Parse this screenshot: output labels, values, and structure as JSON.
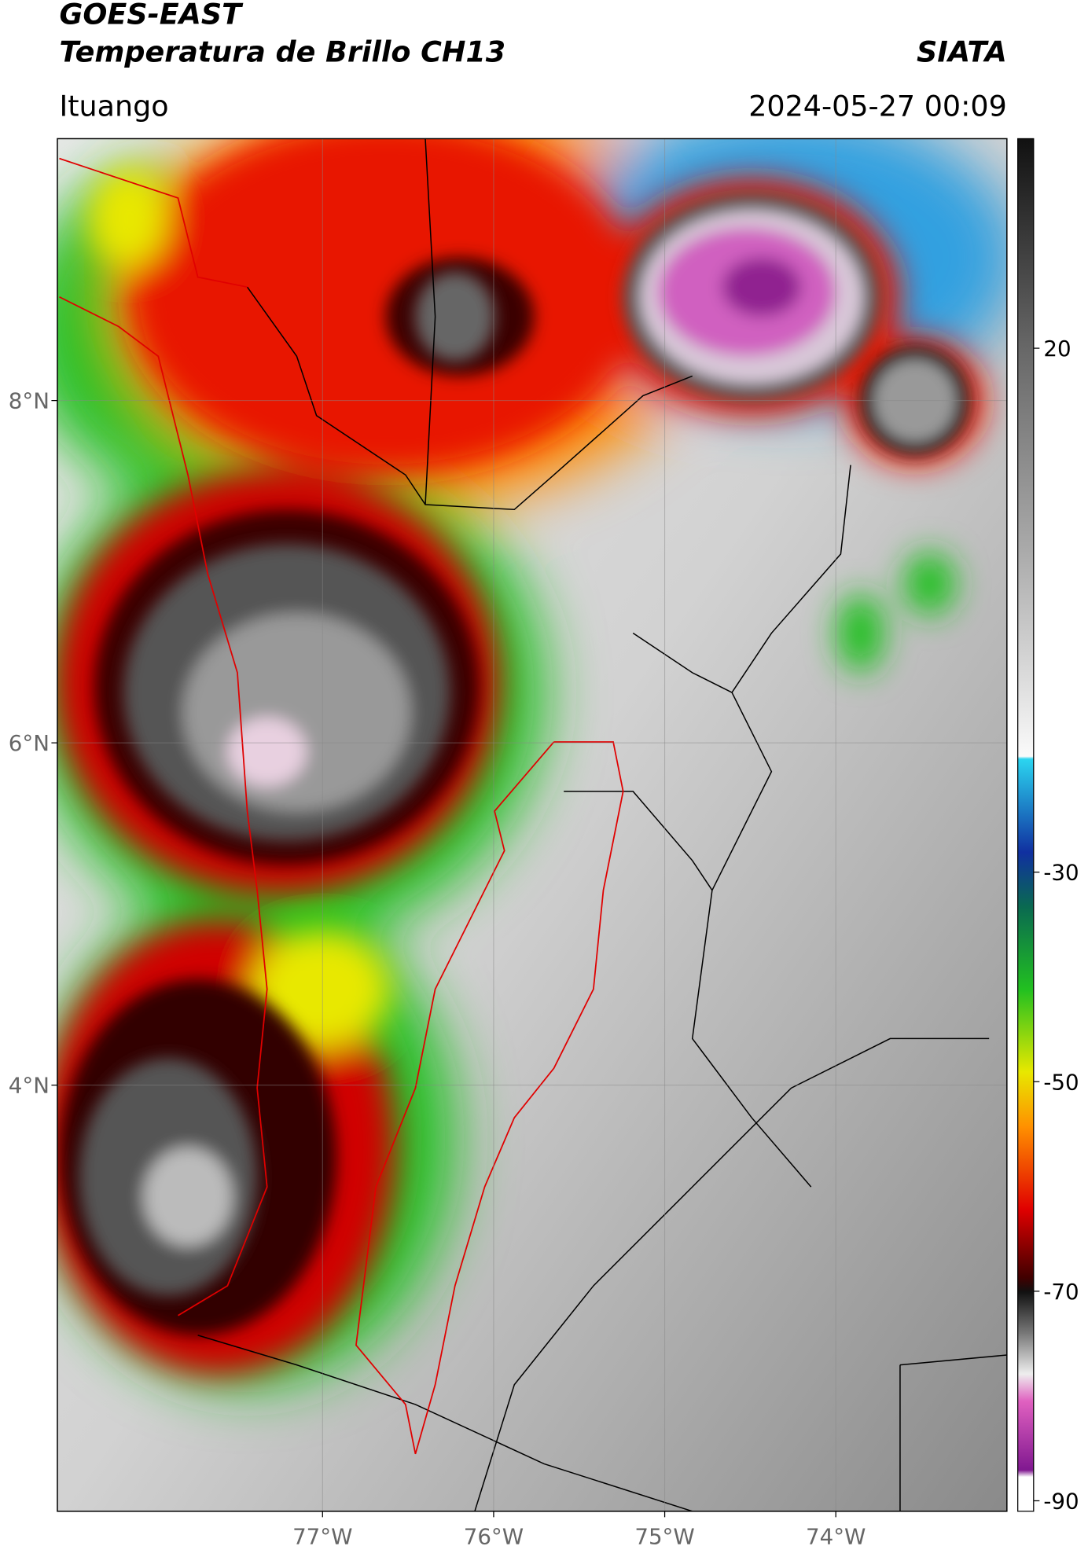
{
  "header": {
    "title": "GOES-EAST",
    "subtitle": "Temperatura de Brillo CH13",
    "brand": "SIATA",
    "location": "Ituango",
    "datetime": "2024-05-27 00:09"
  },
  "map": {
    "xlim": [
      -78.55,
      -73.0
    ],
    "ylim": [
      1.51,
      9.53
    ],
    "xticks": [
      {
        "value": -77,
        "label": "77°W"
      },
      {
        "value": -76,
        "label": "76°W"
      },
      {
        "value": -75,
        "label": "75°W"
      },
      {
        "value": -74,
        "label": "74°W"
      }
    ],
    "yticks": [
      {
        "value": 8,
        "label": "8°N"
      },
      {
        "value": 6,
        "label": "6°N"
      },
      {
        "value": 4,
        "label": "4°N"
      }
    ],
    "grid": true
  },
  "colorbar": {
    "lim": [
      -91,
      40
    ],
    "ticks": [
      20,
      -30,
      -50,
      -70,
      -90
    ]
  }
}
